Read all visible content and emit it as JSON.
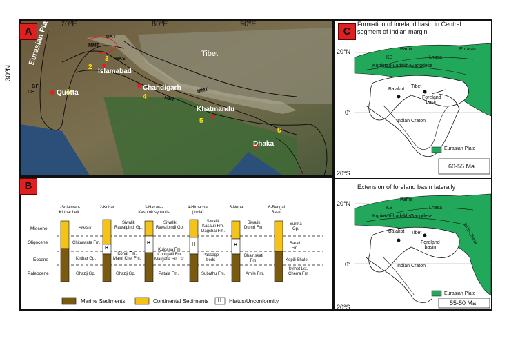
{
  "panel_a": {
    "badge": "A",
    "lon_labels": [
      "70ºE",
      "80ºE",
      "90ºE"
    ],
    "lat_label": "30ºN",
    "places": {
      "eurasian_plate": "Eurasian Plate",
      "islamabad": "Islamabad",
      "chandigarh": "Chandigarh",
      "quetta": "Quetta",
      "khatmandu": "Khatmandu",
      "dhaka": "Dhaka",
      "tibet": "Tibet"
    },
    "faults": {
      "mkt": "MKT",
      "mmt_top": "MMT",
      "hks": "HKS",
      "mmt": "MMT",
      "mbt": "MBT",
      "cf": "CF",
      "gf": "GF"
    },
    "numbers": [
      "1",
      "2",
      "3",
      "4",
      "5",
      "6"
    ]
  },
  "panel_b": {
    "badge": "B",
    "epochs": [
      "Miocene",
      "Oligocene",
      "Eocene",
      "Paleocene"
    ],
    "columns": [
      {
        "head": "1-Sulaiman-\nKirthar belt",
        "formations": [
          "Siwalik",
          "Chitarwata Fm.",
          "Kirthar Gp.",
          "Ghazij Gp."
        ]
      },
      {
        "head": "2-Kohat",
        "formations": [
          "Siwalik\nRawalpindi Gp.",
          "Kohat Fm.\nMami Khel Fm.",
          "Ghazij Gp."
        ]
      },
      {
        "head": "3-Hazara-\nKashmir syntaxis",
        "formations": [
          "Siwalik\nRawalpindi Gp.",
          "Kuldana Fm.\nChorgalli Fm.\nMargalla Hill Lst.",
          "Patala Fm."
        ]
      },
      {
        "head": "4-Himachal\n(India)",
        "formations": [
          "Siwalik\nKasauli Fm.\nDagshai Fm.",
          "Passage\nbeds",
          "Subathu Fm."
        ]
      },
      {
        "head": "5-Nepal",
        "formations": [
          "Siwalik\nDumri Fm.",
          "Bhainskati\nFm.",
          "Amile Fm."
        ]
      },
      {
        "head": "6-Bengal\nBasin",
        "formations": [
          "Surma\nGp.",
          "Barail\nFm.",
          "Kopili Shale",
          "Sylhet Lst.\nCherra Fm"
        ]
      }
    ],
    "hiatus_mark": "H",
    "legend": [
      "Marine Sediments",
      "Continental Sediments",
      "Hiatus/Unconformity"
    ],
    "colors": {
      "marine": "#7a5a10",
      "continental": "#f5c318",
      "hiatus": "#ffffff"
    }
  },
  "panel_c": {
    "badge": "C",
    "top": {
      "title": "Formation of foreland basin in Central\nsegment of Indian margin",
      "lat": [
        "20°N",
        "0°",
        "20°S"
      ],
      "labels": {
        "pamir": "Pamir",
        "eurasia": "Eurasia",
        "kb": "KB",
        "lhasa": "Lhasa",
        "kohistan": "Kohistan-Ladakh-Gangdese",
        "tibet": "Tibet",
        "balakot": "Balakot",
        "foreland": "Foreland\nbasin",
        "craton": "Indian Craton"
      },
      "legend": "Eurasian Plate",
      "age": "60-55 Ma"
    },
    "bottom": {
      "title": "Extension of foreland basin laterally",
      "lat": [
        "20°N",
        "0°",
        "20°S"
      ],
      "labels": {
        "pamir": "Pamir",
        "kb": "KB",
        "lhasa": "Lhasa",
        "kohistan": "Kohistan-Ladakh-Gangdese",
        "indo_china": "Indo-China",
        "tibet": "Tibet",
        "balakot": "Balakot",
        "foreland": "Foreland\nbasin",
        "craton": "Indian Craton"
      },
      "legend": "Eurasian Plate",
      "age": "55-50 Ma"
    },
    "eurasia_color": "#22a85a"
  }
}
